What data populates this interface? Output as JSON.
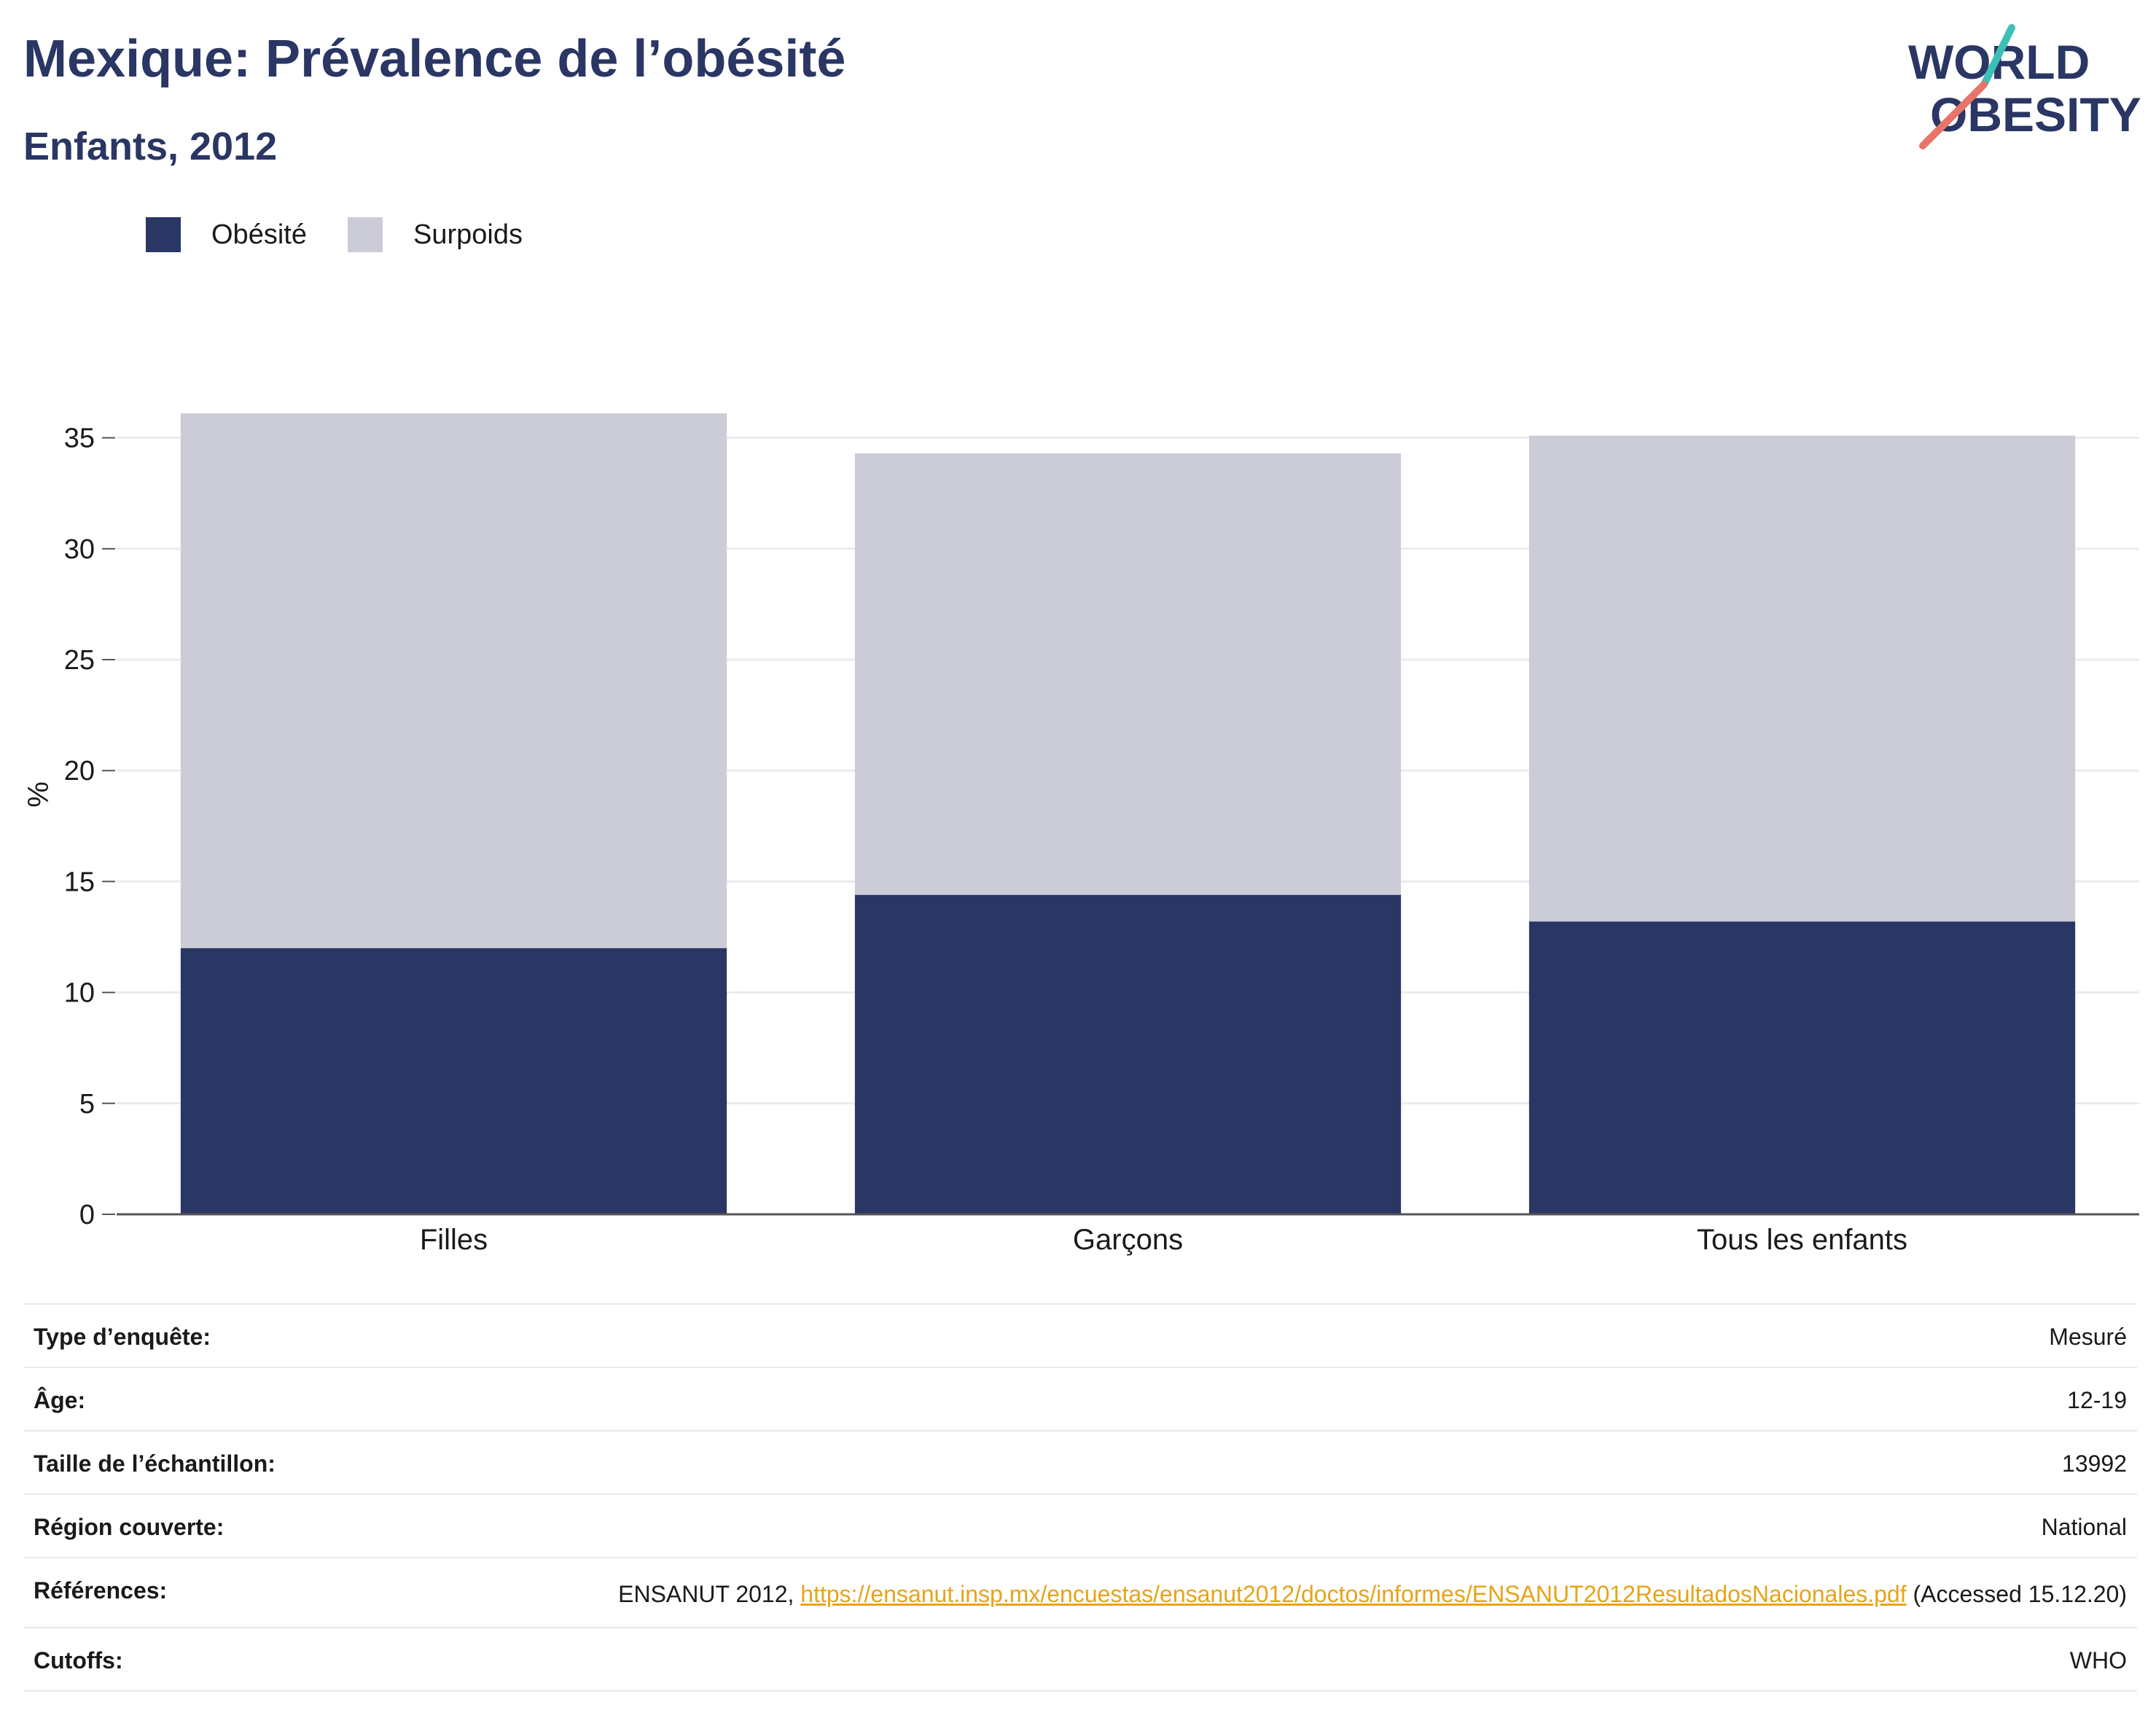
{
  "title": "Mexique: Prévalence de l’obésité",
  "subtitle": "Enfants, 2012",
  "logo": {
    "line1": "WORLD",
    "line2": "OBESITY"
  },
  "colors": {
    "obesite": "#2a3663",
    "surpoids": "#cbccd8",
    "accent_teal": "#3bbfb6",
    "accent_coral": "#e8746a",
    "link": "#e8a317"
  },
  "chart_data": {
    "type": "bar",
    "stacked": true,
    "categories": [
      "Filles",
      "Garçons",
      "Tous les enfants"
    ],
    "series": [
      {
        "name": "Obésité",
        "values": [
          12.0,
          14.4,
          13.2
        ]
      },
      {
        "name": "Surpoids",
        "values": [
          24.1,
          19.9,
          21.9
        ]
      }
    ],
    "ylabel": "%",
    "ylim": [
      0,
      36.5
    ],
    "yticks": [
      0,
      5,
      10,
      15,
      20,
      25,
      30,
      35
    ],
    "grid": true,
    "legend_position": "top-left"
  },
  "info": {
    "type_label": "Type d’enquête:",
    "type_value": "Mesuré",
    "age_label": "Âge:",
    "age_value": "12-19",
    "sample_label": "Taille de l’échantillon:",
    "sample_value": "13992",
    "region_label": "Région couverte:",
    "region_value": "National",
    "refs_label": "Références:",
    "refs_prefix": "ENSANUT 2012,",
    "refs_link": "https://ensanut.insp.mx/encuestas/ensanut2012/doctos/informes/ENSANUT2012ResultadosNacionales.pdf",
    "refs_suffix": "(Accessed 15.12.20)",
    "cutoffs_label": "Cutoffs:",
    "cutoffs_value": "WHO"
  }
}
